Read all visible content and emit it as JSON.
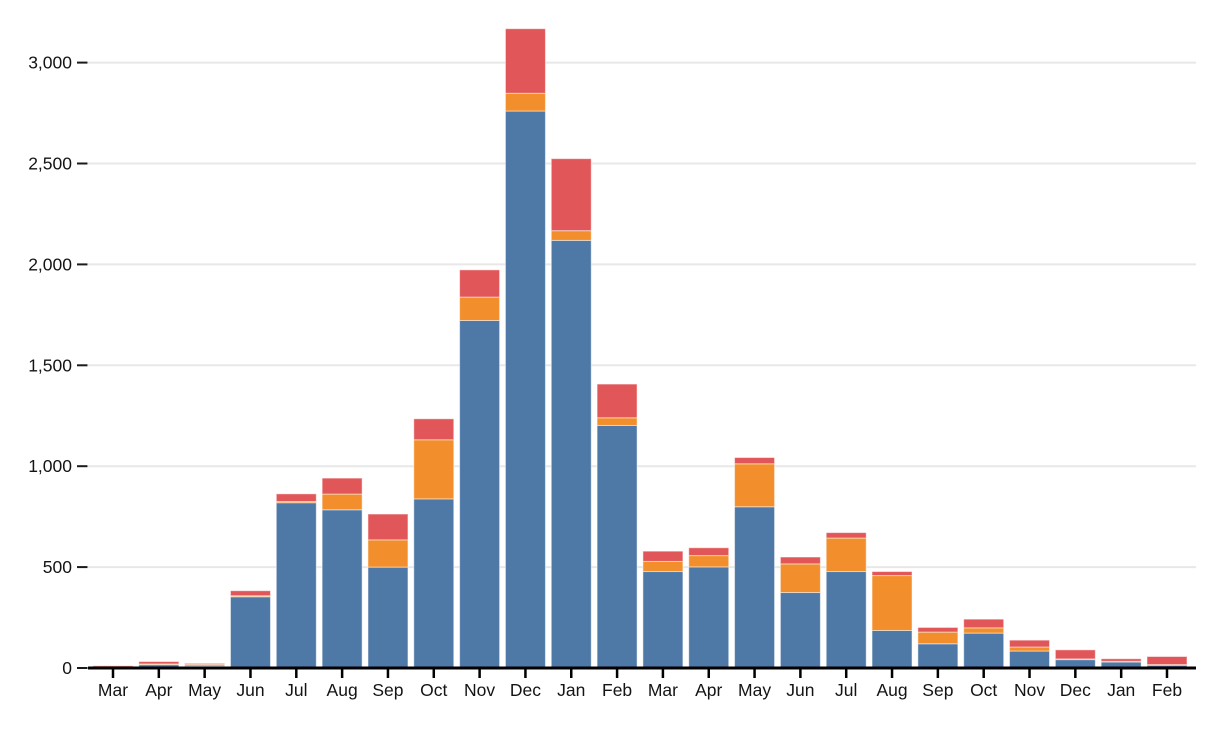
{
  "chart_data": {
    "type": "bar",
    "stacked": true,
    "title": "",
    "xlabel": "",
    "ylabel": "",
    "legend": "none",
    "grid": "horizontal",
    "background_color": "#ffffff",
    "gridline_color": "#e8e8e8",
    "axis_line_color": "#000000",
    "tick_color": "#1a1a1a",
    "text_color": "#141414",
    "categories": [
      "Mar",
      "Apr",
      "May",
      "Jun",
      "Jul",
      "Aug",
      "Sep",
      "Oct",
      "Nov",
      "Dec",
      "Jan",
      "Feb",
      "Mar",
      "Apr",
      "May",
      "Jun",
      "Jul",
      "Aug",
      "Sep",
      "Oct",
      "Nov",
      "Dec",
      "Jan",
      "Feb"
    ],
    "series": [
      {
        "name": "blue",
        "color": "#4e79a7",
        "values": [
          2,
          17,
          10,
          353,
          819,
          784,
          500,
          838,
          1722,
          2760,
          2119,
          1202,
          478,
          501,
          799,
          374,
          478,
          186,
          120,
          173,
          84,
          42,
          31,
          14
        ]
      },
      {
        "name": "orange",
        "color": "#f28e2b",
        "values": [
          1,
          3,
          8,
          5,
          6,
          78,
          135,
          293,
          116,
          88,
          48,
          38,
          50,
          56,
          213,
          142,
          166,
          272,
          58,
          26,
          20,
          3,
          2,
          3
        ]
      },
      {
        "name": "red",
        "color": "#e15759",
        "values": [
          8,
          12,
          5,
          25,
          38,
          79,
          128,
          104,
          135,
          320,
          357,
          167,
          51,
          39,
          31,
          34,
          27,
          20,
          23,
          43,
          34,
          45,
          13,
          40
        ]
      }
    ],
    "totals": [
      11,
      32,
      23,
      383,
      863,
      941,
      763,
      1235,
      1973,
      3168,
      2524,
      1407,
      579,
      596,
      1043,
      550,
      671,
      478,
      201,
      242,
      138,
      90,
      46,
      57
    ],
    "ylim": [
      0,
      3180
    ],
    "yticks": [
      0,
      500,
      1000,
      1500,
      2000,
      2500,
      3000
    ],
    "ytick_labels": [
      "0",
      "500",
      "1,000",
      "1,500",
      "2,000",
      "2,500",
      "3,000"
    ]
  }
}
